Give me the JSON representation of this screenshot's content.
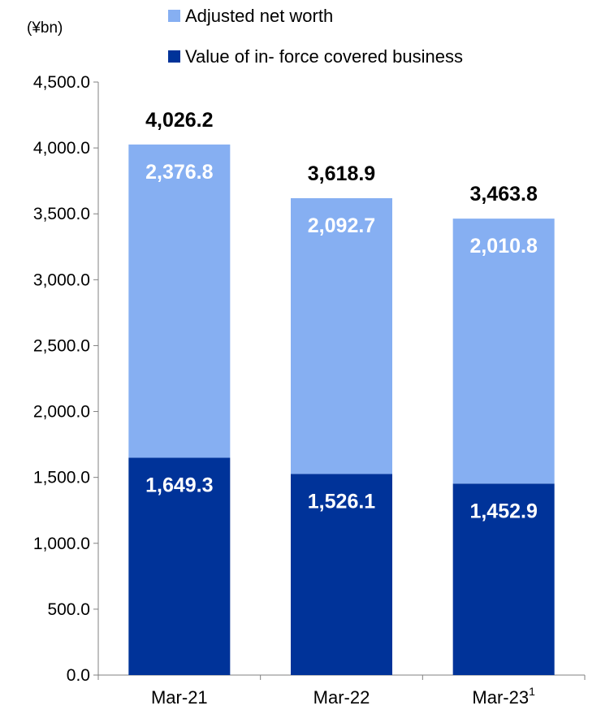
{
  "chart_data": {
    "type": "bar",
    "stacked": true,
    "unit_label": "(¥bn)",
    "categories": [
      "Mar-21",
      "Mar-22",
      "Mar-23"
    ],
    "category_superscripts": [
      "",
      "",
      "1"
    ],
    "series": [
      {
        "name": "Value of in- force covered business",
        "values": [
          1649.3,
          1526.1,
          1452.9
        ],
        "color": "#003399",
        "value_labels": [
          "1,649.3",
          "1,526.1",
          "1,452.9"
        ]
      },
      {
        "name": "Adjusted net worth",
        "values": [
          2376.8,
          2092.7,
          2010.8
        ],
        "color": "#86aff2",
        "value_labels": [
          "2,376.8",
          "2,092.7",
          "2,010.8"
        ]
      }
    ],
    "totals": [
      4026.2,
      3618.9,
      3463.8
    ],
    "total_labels": [
      "4,026.2",
      "3,618.9",
      "3,463.8"
    ],
    "ylim": [
      0,
      4500
    ],
    "yticks": [
      0,
      500,
      1000,
      1500,
      2000,
      2500,
      3000,
      3500,
      4000,
      4500
    ],
    "ytick_labels": [
      "0.0",
      "500.0",
      "1,000.0",
      "1,500.0",
      "2,000.0",
      "2,500.0",
      "3,000.0",
      "3,500.0",
      "4,000.0",
      "4,500.0"
    ],
    "legend": {
      "position": "top",
      "entries": [
        "Adjusted net worth",
        "Value of in- force covered business"
      ],
      "colors": [
        "#86aff2",
        "#003399"
      ]
    },
    "grid": false
  }
}
